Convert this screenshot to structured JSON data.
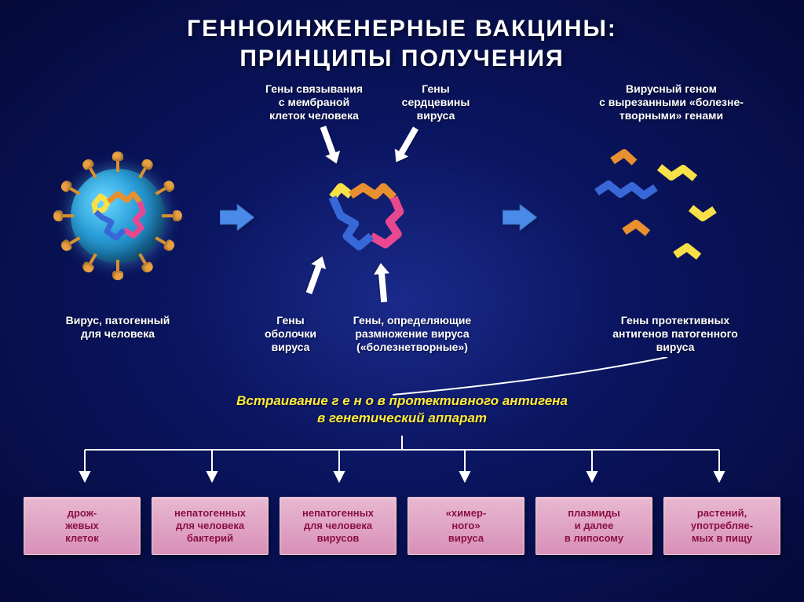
{
  "title_line1": "ГЕННОИНЖЕНЕРНЫЕ ВАКЦИНЫ:",
  "title_line2": "ПРИНЦИПЫ ПОЛУЧЕНИЯ",
  "top_labels": {
    "membrane": "Гены связывания\nс мембраной\nклеток человека",
    "core": "Гены\nсердцевины\nвируса",
    "cut_genome": "Вирусный геном\nс вырезанными «болезне-\nтворными» генами"
  },
  "bottom_labels": {
    "virus": "Вирус, патогенный\nдля человека",
    "envelope": "Гены\nоболочки\nвируса",
    "replication": "Гены, определяющие\nразмножение вируса\n(«болезнетворные»)",
    "protective": "Гены протективных\nантигенов патогенного\nвируса"
  },
  "insert_line1": "Встраивание  г е н о в  протективного антигена",
  "insert_line2": "в генетический аппарат",
  "boxes": [
    "дрож-\nжевых\nклеток",
    "непатогенных\nдля человека\nбактерий",
    "непатогенных\nдля человека\nвирусов",
    "«химер-\nного»\nвируса",
    "плазмиды\nи далее\nв  липосому",
    "растений,\nупотребляе-\nмых в пищу"
  ],
  "colors": {
    "genome_pink": "#e84890",
    "genome_blue": "#3868d8",
    "genome_orange": "#e89030",
    "genome_yellow": "#f8e048",
    "arrow_fill": "#4a8ae8",
    "arrow_stroke": "#2858a8",
    "white": "#ffffff",
    "yellow_text": "#ffeb3b",
    "box_bg": "#e8b8d0",
    "box_text": "#8a1040"
  }
}
